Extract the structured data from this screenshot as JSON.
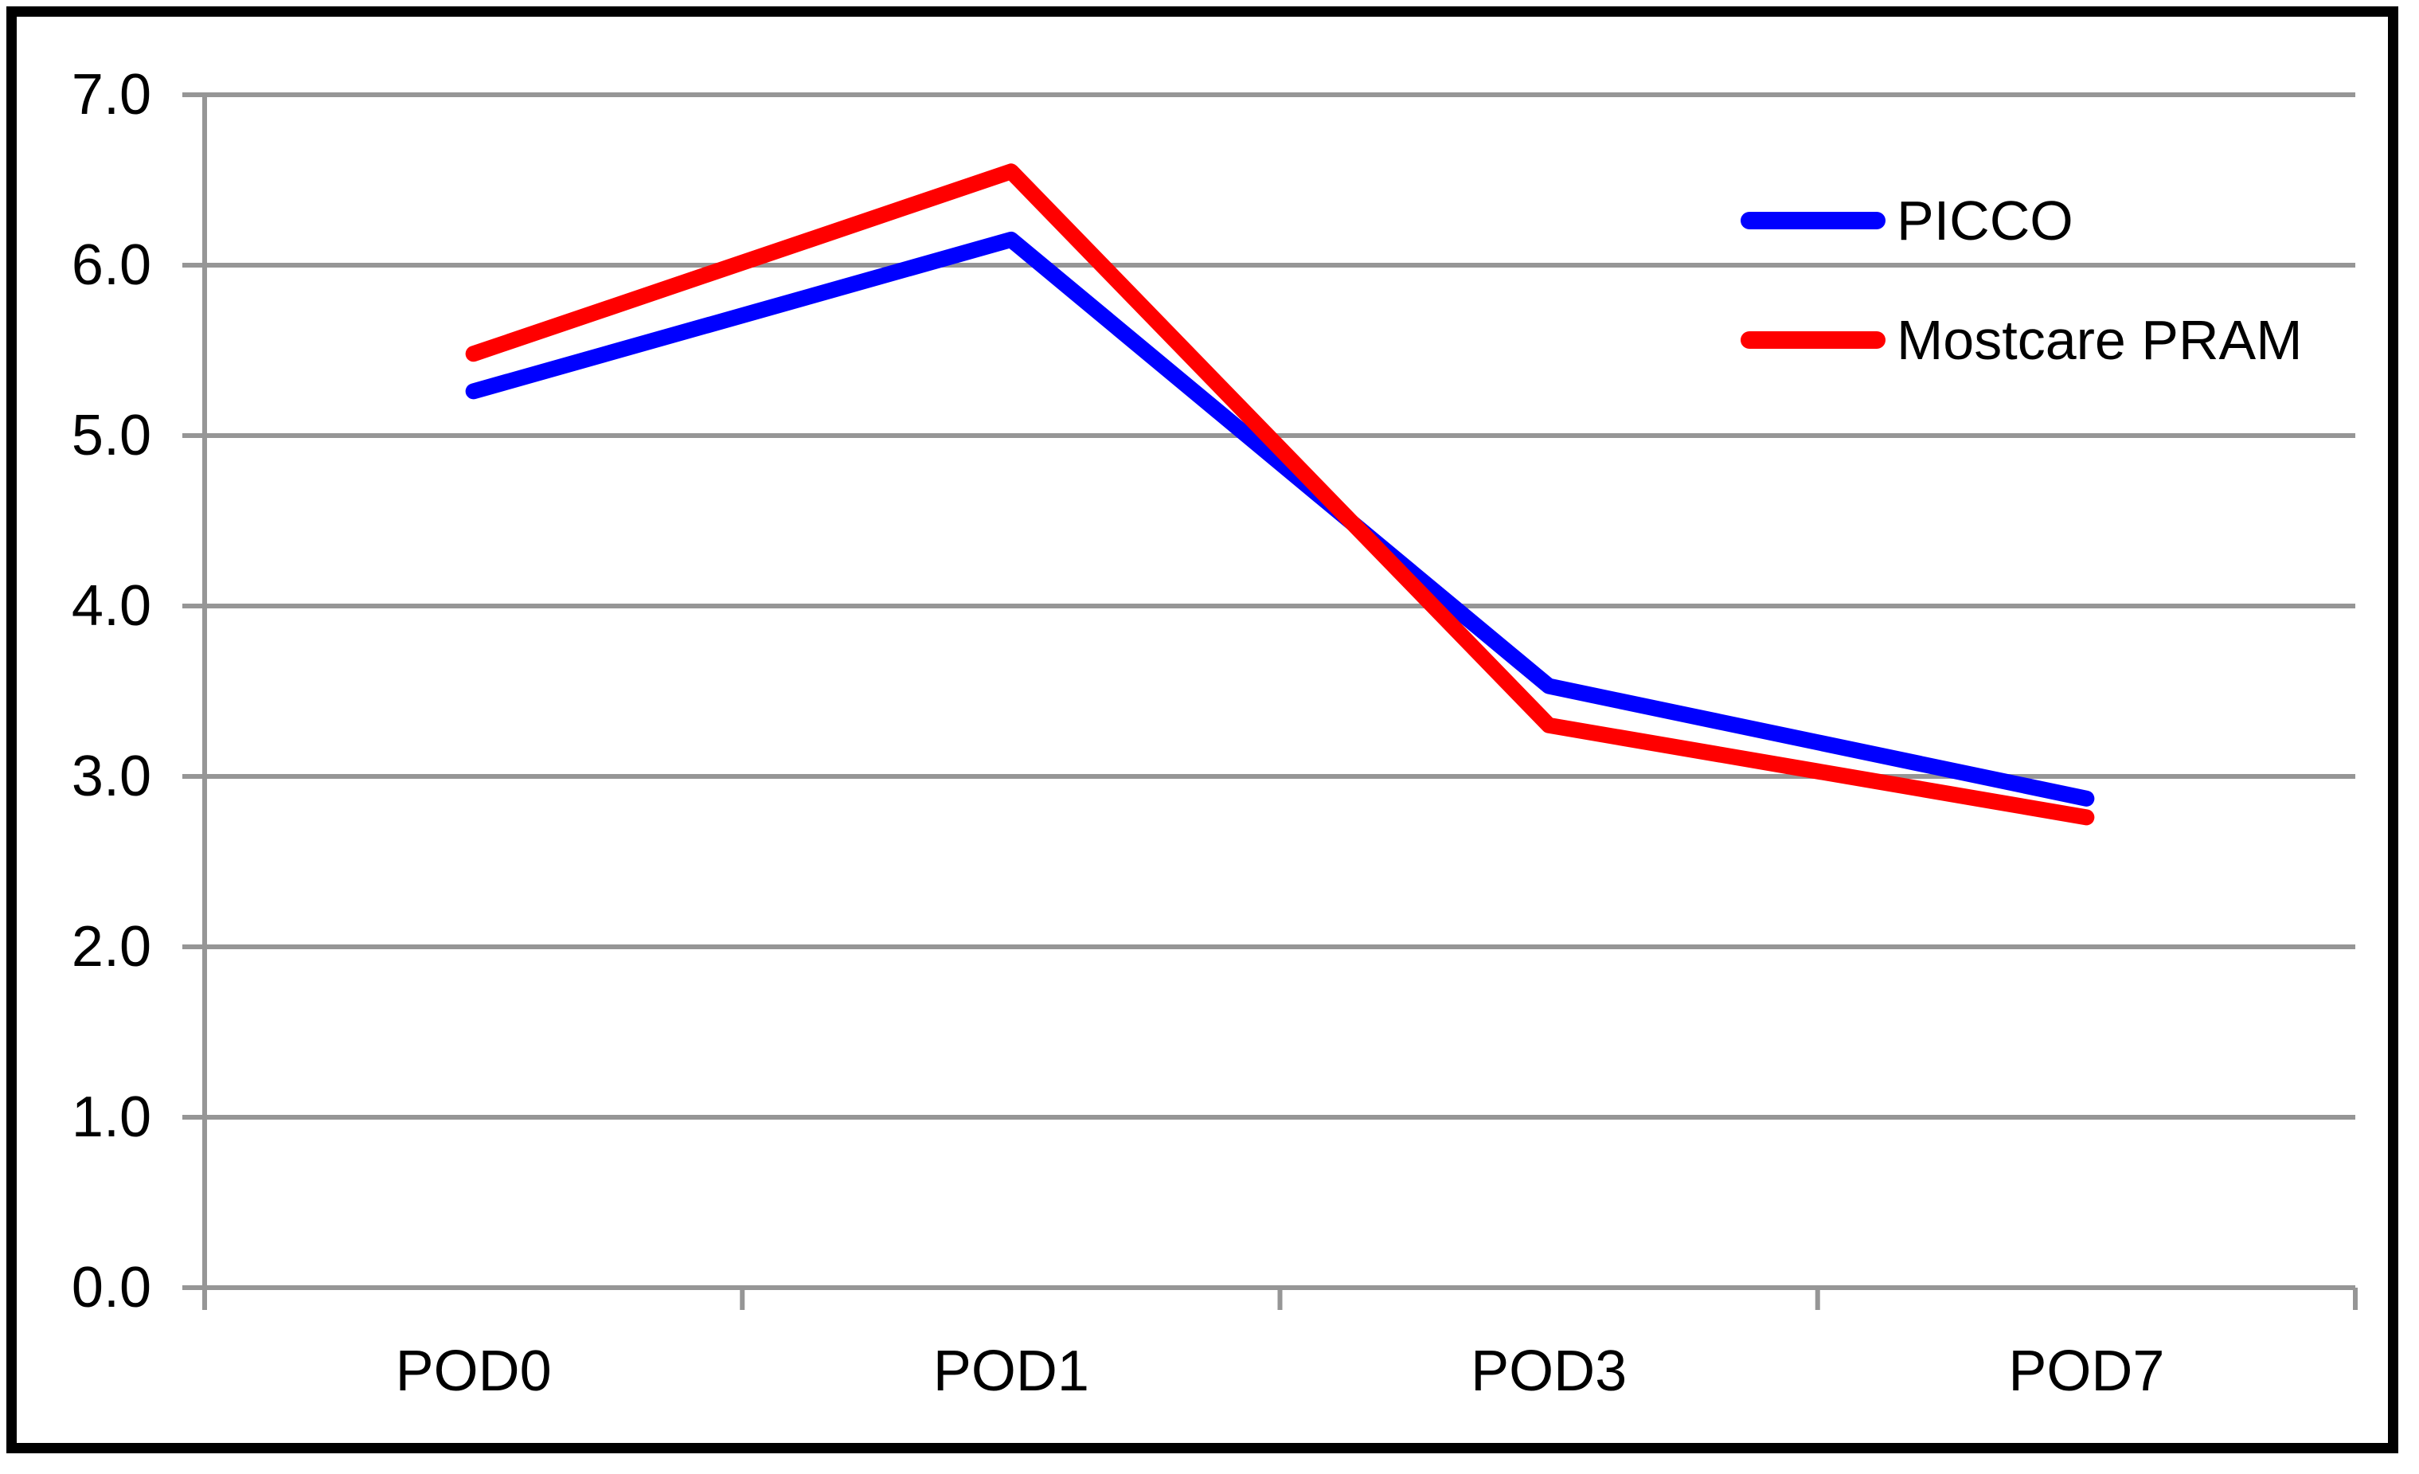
{
  "chart_data": {
    "type": "line",
    "categories": [
      "POD0",
      "POD1",
      "POD3",
      "POD7"
    ],
    "series": [
      {
        "name": "PICCO",
        "color": "#0000FF",
        "values": [
          5.26,
          6.15,
          3.53,
          2.87
        ]
      },
      {
        "name": "Mostcare PRAM",
        "color": "#FF0000",
        "values": [
          5.48,
          6.55,
          3.3,
          2.76
        ]
      }
    ],
    "title": "",
    "xlabel": "",
    "ylabel": "",
    "ylim": [
      0,
      7
    ],
    "ytick_step": 1.0,
    "ytick_labels": [
      "0.0",
      "1.0",
      "2.0",
      "3.0",
      "4.0",
      "5.0",
      "6.0",
      "7.0"
    ],
    "grid": true,
    "legend_position": "upper-right",
    "line_width": 20,
    "colors": {
      "gridline": "#969696",
      "axis": "#969696",
      "frame_border": "#000000",
      "background": "#FFFFFF",
      "text": "#000000"
    }
  }
}
